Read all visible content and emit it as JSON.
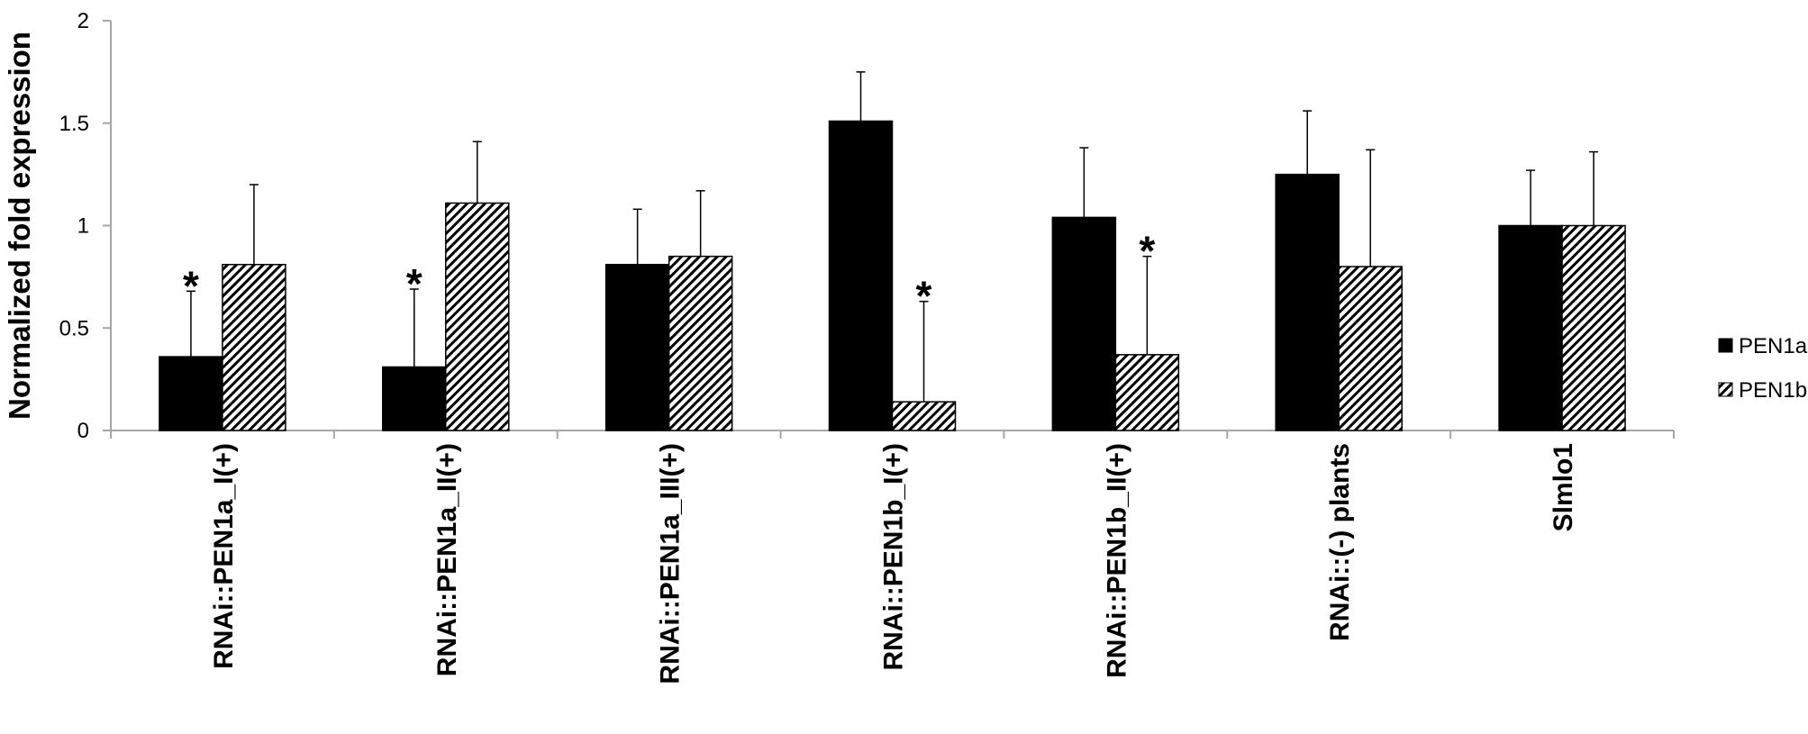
{
  "chart_data": {
    "type": "bar",
    "title": "",
    "xlabel": "",
    "ylabel": "Normalized fold expression",
    "ylim": [
      0,
      2
    ],
    "yticks": [
      0,
      0.5,
      1,
      1.5,
      2
    ],
    "ytick_labels": [
      "0",
      "0.5",
      "1",
      "1.5",
      "2"
    ],
    "grid": false,
    "legend_position": "right",
    "categories": [
      "RNAi::PEN1a_I(+)",
      "RNAi::PEN1a_II(+)",
      "RNAi::PEN1a_III(+)",
      "RNAi::PEN1b_I(+)",
      "RNAi::PEN1b_II(+)",
      "RNAi::(-) plants",
      "Slmlo1"
    ],
    "series": [
      {
        "name": "PEN1a",
        "fill": "solid",
        "color": "#000000",
        "values": [
          0.36,
          0.31,
          0.81,
          1.51,
          1.04,
          1.25,
          1.0
        ],
        "errors": [
          0.32,
          0.38,
          0.27,
          0.24,
          0.34,
          0.31,
          0.27
        ]
      },
      {
        "name": "PEN1b",
        "fill": "diagonal-hatch",
        "color": "#000000",
        "values": [
          0.81,
          1.11,
          0.85,
          0.14,
          0.37,
          0.8,
          1.0
        ],
        "errors": [
          0.39,
          0.3,
          0.32,
          0.49,
          0.48,
          0.57,
          0.36
        ]
      }
    ],
    "annotations": [
      {
        "text": "*",
        "category": 0,
        "series": 0
      },
      {
        "text": "*",
        "category": 1,
        "series": 0
      },
      {
        "text": "*",
        "category": 3,
        "series": 1
      },
      {
        "text": "*",
        "category": 4,
        "series": 1
      }
    ]
  }
}
